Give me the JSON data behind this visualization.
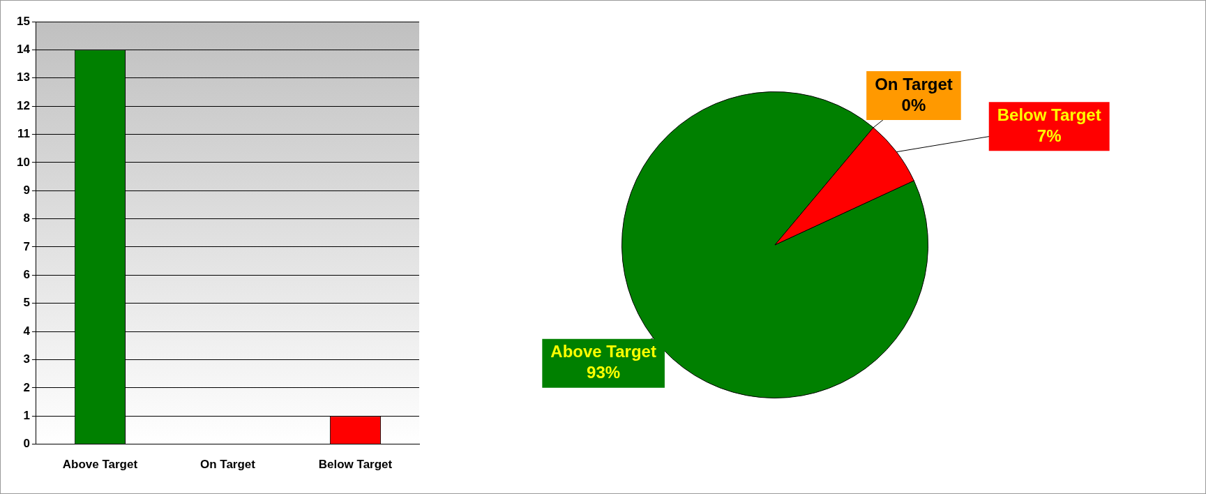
{
  "chart_data": [
    {
      "type": "bar",
      "categories": [
        "Above Target",
        "On Target",
        "Below Target"
      ],
      "values": [
        14,
        0,
        1
      ],
      "colors": [
        "#008000",
        "#ff9900",
        "#ff0000"
      ],
      "ylim": [
        0,
        15
      ],
      "yticks": [
        0,
        1,
        2,
        3,
        4,
        5,
        6,
        7,
        8,
        9,
        10,
        11,
        12,
        13,
        14,
        15
      ],
      "grid": "y",
      "legend": false
    },
    {
      "type": "pie",
      "categories": [
        "Above Target",
        "On Target",
        "Below Target"
      ],
      "values": [
        93,
        0,
        7
      ],
      "colors": [
        "#008000",
        "#ff9900",
        "#ff0000"
      ],
      "value_labels": [
        "93%",
        "0%",
        "7%"
      ],
      "legend": false
    }
  ]
}
